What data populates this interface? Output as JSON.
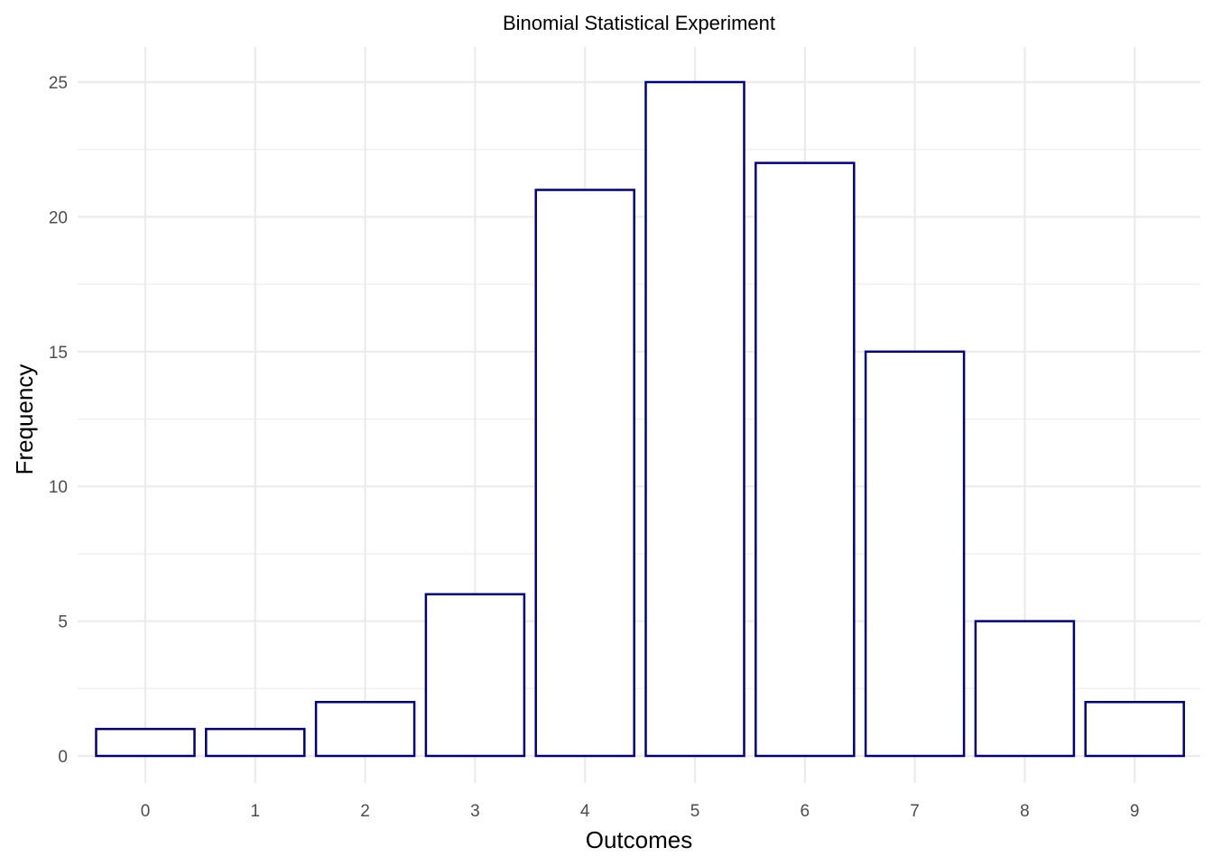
{
  "chart_data": {
    "type": "bar",
    "title": "Binomial Statistical Experiment",
    "xlabel": "Outcomes",
    "ylabel": "Frequency",
    "categories": [
      "0",
      "1",
      "2",
      "3",
      "4",
      "5",
      "6",
      "7",
      "8",
      "9"
    ],
    "values": [
      1,
      1,
      2,
      6,
      21,
      25,
      22,
      15,
      5,
      2
    ],
    "yticks": [
      "0",
      "5",
      "10",
      "15",
      "20",
      "25"
    ],
    "ylim": [
      0,
      26.2
    ],
    "grid": true,
    "legend": "none",
    "bar_fill": "#ffffff",
    "bar_outline": "#000080"
  }
}
